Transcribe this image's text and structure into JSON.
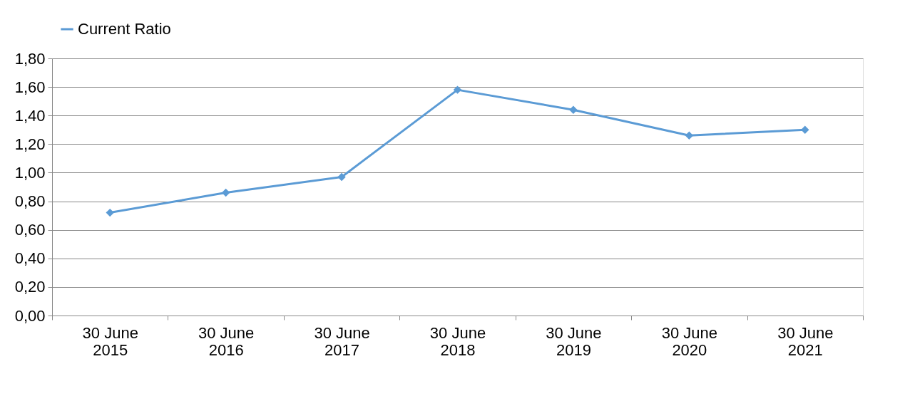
{
  "chart_data": {
    "type": "line",
    "categories": [
      "30 June 2015",
      "30 June 2016",
      "30 June 2017",
      "30 June 2018",
      "30 June 2019",
      "30 June 2020",
      "30 June 2021"
    ],
    "series": [
      {
        "name": "Current Ratio",
        "color": "#5b9bd5",
        "values": [
          0.72,
          0.86,
          0.97,
          1.58,
          1.44,
          1.26,
          1.3
        ]
      }
    ],
    "ylim": [
      0,
      1.8
    ],
    "yticks": [
      {
        "value": 0,
        "label": "0,00"
      },
      {
        "value": 0.2,
        "label": "0,20"
      },
      {
        "value": 0.4,
        "label": "0,40"
      },
      {
        "value": 0.6,
        "label": "0,60"
      },
      {
        "value": 0.8,
        "label": "0,80"
      },
      {
        "value": 1.0,
        "label": "1,00"
      },
      {
        "value": 1.2,
        "label": "1,20"
      },
      {
        "value": 1.4,
        "label": "1,40"
      },
      {
        "value": 1.6,
        "label": "1,60"
      },
      {
        "value": 1.8,
        "label": "1,80"
      }
    ],
    "grid": "y",
    "legend": "top",
    "marker": "diamond",
    "line_style": "solid"
  }
}
